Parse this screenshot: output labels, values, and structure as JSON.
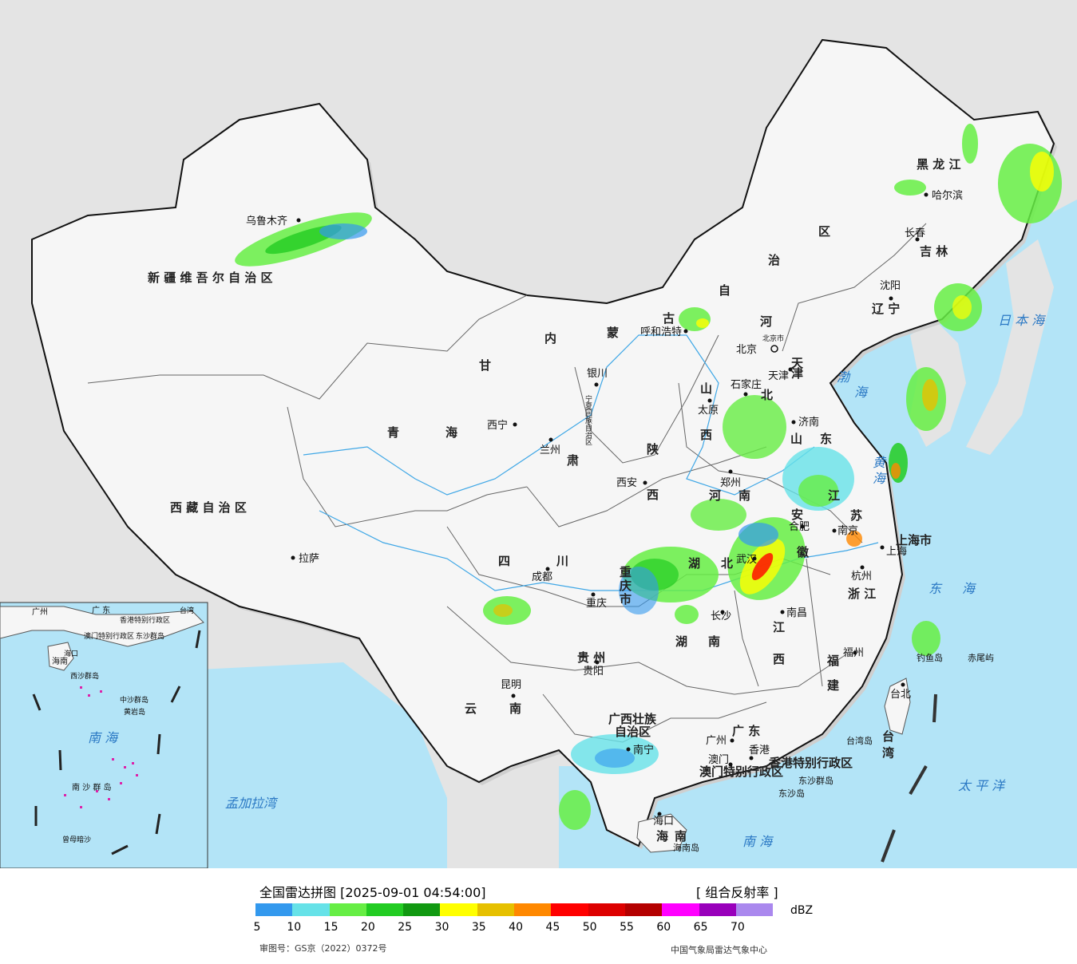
{
  "map": {
    "province_labels": [
      {
        "text": "新 疆 维 吾 尔 自 治 区",
        "id": "xinjiang"
      },
      {
        "text": "西 藏 自 治 区",
        "id": "xizang"
      },
      {
        "text": "青",
        "id": "qinghai-1"
      },
      {
        "text": "海",
        "id": "qinghai-2"
      },
      {
        "text": "甘",
        "id": "gansu-1"
      },
      {
        "text": "肃",
        "id": "gansu-2"
      },
      {
        "text": "内",
        "id": "nmg-1"
      },
      {
        "text": "蒙",
        "id": "nmg-2"
      },
      {
        "text": "古",
        "id": "nmg-3"
      },
      {
        "text": "自",
        "id": "nmg-4"
      },
      {
        "text": "治",
        "id": "nmg-5"
      },
      {
        "text": "区",
        "id": "nmg-6"
      },
      {
        "text": "黑 龙 江",
        "id": "heilongjiang"
      },
      {
        "text": "吉 林",
        "id": "jilin"
      },
      {
        "text": "辽 宁",
        "id": "liaoning"
      },
      {
        "text": "河",
        "id": "hebei-1"
      },
      {
        "text": "北",
        "id": "hebei-2"
      },
      {
        "text": "山",
        "id": "shanxi-1"
      },
      {
        "text": "西",
        "id": "shanxi-2"
      },
      {
        "text": "山",
        "id": "shandong-1"
      },
      {
        "text": "东",
        "id": "shandong-2"
      },
      {
        "text": "陕",
        "id": "shaanxi-1"
      },
      {
        "text": "西",
        "id": "shaanxi-2"
      },
      {
        "text": "河",
        "id": "henan-1"
      },
      {
        "text": "南",
        "id": "henan-2"
      },
      {
        "text": "江",
        "id": "jiangsu-1"
      },
      {
        "text": "苏",
        "id": "jiangsu-2"
      },
      {
        "text": "安",
        "id": "anhui-1"
      },
      {
        "text": "徽",
        "id": "anhui-2"
      },
      {
        "text": "上海市",
        "id": "shanghai"
      },
      {
        "text": "浙 江",
        "id": "zhejiang"
      },
      {
        "text": "四",
        "id": "sichuan-1"
      },
      {
        "text": "川",
        "id": "sichuan-2"
      },
      {
        "text": "重",
        "id": "cq-1"
      },
      {
        "text": "庆",
        "id": "cq-2"
      },
      {
        "text": "市",
        "id": "cq-3"
      },
      {
        "text": "湖",
        "id": "hubei-1"
      },
      {
        "text": "北",
        "id": "hubei-2"
      },
      {
        "text": "湖",
        "id": "hunan-1"
      },
      {
        "text": "南",
        "id": "hunan-2"
      },
      {
        "text": "江",
        "id": "jiangxi-1"
      },
      {
        "text": "西",
        "id": "jiangxi-2"
      },
      {
        "text": "福",
        "id": "fujian-1"
      },
      {
        "text": "建",
        "id": "fujian-2"
      },
      {
        "text": "贵 州",
        "id": "guizhou"
      },
      {
        "text": "云",
        "id": "yunnan-1"
      },
      {
        "text": "南",
        "id": "yunnan-2"
      },
      {
        "text": "广西壮族",
        "id": "guangxi-1"
      },
      {
        "text": "自治区",
        "id": "guangxi-2"
      },
      {
        "text": "广 东",
        "id": "guangdong"
      },
      {
        "text": "海",
        "id": "hainan-1"
      },
      {
        "text": "南",
        "id": "hainan-2"
      },
      {
        "text": "宁夏回族自治区",
        "id": "ningxia"
      },
      {
        "text": "天",
        "id": "tianjin-1"
      },
      {
        "text": "津",
        "id": "tianjin-2"
      },
      {
        "text": "香港特别行政区",
        "id": "hk"
      },
      {
        "text": "澳门特别行政区",
        "id": "macau"
      },
      {
        "text": "台 湾",
        "id": "taiwan"
      }
    ],
    "cities": [
      {
        "text": "乌鲁木齐",
        "id": "urumqi"
      },
      {
        "text": "拉萨",
        "id": "lhasa"
      },
      {
        "text": "西宁",
        "id": "xining"
      },
      {
        "text": "兰州",
        "id": "lanzhou"
      },
      {
        "text": "银川",
        "id": "yinchuan"
      },
      {
        "text": "呼和浩特",
        "id": "hohhot"
      },
      {
        "text": "哈尔滨",
        "id": "harbin"
      },
      {
        "text": "长春",
        "id": "changchun"
      },
      {
        "text": "沈阳",
        "id": "shenyang"
      },
      {
        "text": "北京",
        "id": "beijing"
      },
      {
        "text": "北京市",
        "id": "beijing-small"
      },
      {
        "text": "天津",
        "id": "tianjin"
      },
      {
        "text": "石家庄",
        "id": "shijiazhuang"
      },
      {
        "text": "太原",
        "id": "taiyuan"
      },
      {
        "text": "济南",
        "id": "jinan"
      },
      {
        "text": "郑州",
        "id": "zhengzhou"
      },
      {
        "text": "西安",
        "id": "xian"
      },
      {
        "text": "合肥",
        "id": "hefei"
      },
      {
        "text": "南京",
        "id": "nanjing"
      },
      {
        "text": "上海",
        "id": "shanghai-city"
      },
      {
        "text": "杭州",
        "id": "hangzhou"
      },
      {
        "text": "武汉",
        "id": "wuhan"
      },
      {
        "text": "成都",
        "id": "chengdu"
      },
      {
        "text": "重庆",
        "id": "chongqing"
      },
      {
        "text": "长沙",
        "id": "changsha"
      },
      {
        "text": "南昌",
        "id": "nanchang"
      },
      {
        "text": "福州",
        "id": "fuzhou"
      },
      {
        "text": "贵阳",
        "id": "guiyang"
      },
      {
        "text": "昆明",
        "id": "kunming"
      },
      {
        "text": "南宁",
        "id": "nanning"
      },
      {
        "text": "广州",
        "id": "guangzhou"
      },
      {
        "text": "香港",
        "id": "hongkong"
      },
      {
        "text": "澳门",
        "id": "macao"
      },
      {
        "text": "海口",
        "id": "haikou"
      },
      {
        "text": "台北",
        "id": "taipei"
      }
    ],
    "seas": [
      {
        "text": "日 本 海",
        "id": "sea-japan"
      },
      {
        "text": "渤",
        "id": "bohai-1"
      },
      {
        "text": "海",
        "id": "bohai-2"
      },
      {
        "text": "黄",
        "id": "huanghai-1"
      },
      {
        "text": "海",
        "id": "huanghai-2"
      },
      {
        "text": "东",
        "id": "donghai-1"
      },
      {
        "text": "海",
        "id": "donghai-2"
      },
      {
        "text": "太 平 洋",
        "id": "pacific"
      },
      {
        "text": "南      海",
        "id": "nanhai"
      },
      {
        "text": "孟加拉湾",
        "id": "bengal"
      }
    ],
    "islands": [
      {
        "text": "钓鱼岛",
        "id": "diaoyu"
      },
      {
        "text": "赤尾屿",
        "id": "chiwei"
      },
      {
        "text": "台湾岛",
        "id": "taiwan-island"
      },
      {
        "text": "东沙群岛",
        "id": "dongsha"
      },
      {
        "text": "东沙岛",
        "id": "dongsha-island"
      },
      {
        "text": "海南岛",
        "id": "hainan-island"
      }
    ],
    "inset": {
      "labels": [
        "广州",
        "广 东",
        "香港特别行政区",
        "澳门特别行政区",
        "东沙群岛",
        "台湾",
        "海口",
        "海南",
        "西沙群岛",
        "中沙群岛",
        "黄岩岛",
        "南      海",
        "南 沙 群 岛",
        "曾母暗沙"
      ]
    }
  },
  "legend": {
    "title": "全国雷达拼图 [2025-09-01 04:54:00]",
    "product": "[ 组合反射率 ]",
    "unit": "dBZ",
    "colors": [
      "#3399ee",
      "#66e2e8",
      "#66ee44",
      "#22cc22",
      "#119911",
      "#ffff00",
      "#e6c000",
      "#ff8800",
      "#ff0000",
      "#dd0000",
      "#b40000",
      "#ff00ff",
      "#9900bb",
      "#aa88ee"
    ],
    "ticks": [
      "5",
      "10",
      "15",
      "20",
      "25",
      "30",
      "35",
      "40",
      "45",
      "50",
      "55",
      "60",
      "65",
      "70"
    ],
    "approval": "审图号：GS京（2022）0372号",
    "source": "中国气象局雷达气象中心"
  }
}
